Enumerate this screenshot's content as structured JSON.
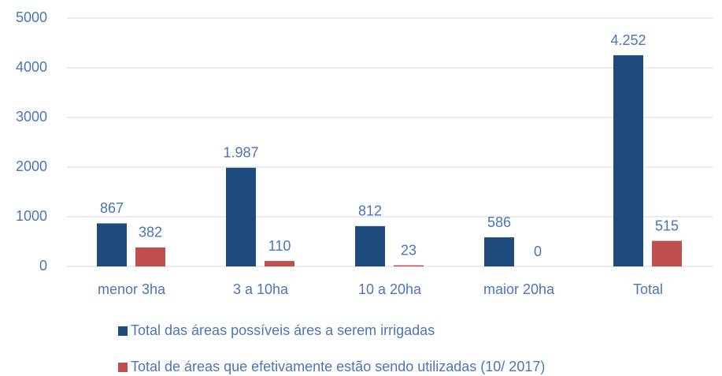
{
  "chart_data": {
    "type": "bar",
    "categories": [
      "menor 3ha",
      "3 a 10ha",
      "10 a 20ha",
      "maior 20ha",
      "Total"
    ],
    "series": [
      {
        "name": "Total das áreas possíveis áres a serem irrigadas",
        "color": "#1f4a7e",
        "values": [
          867,
          1987,
          812,
          586,
          4252
        ],
        "value_labels": [
          "867",
          "1.987",
          "812",
          "586",
          "4.252"
        ]
      },
      {
        "name": "Total de áreas que efetivamente estão sendo utilizadas (10/ 2017)",
        "color": "#c0504d",
        "values": [
          382,
          110,
          23,
          0,
          515
        ],
        "value_labels": [
          "382",
          "110",
          "23",
          "0",
          "515"
        ]
      }
    ],
    "ylim": [
      0,
      5000
    ],
    "yticks": [
      0,
      1000,
      2000,
      3000,
      4000,
      5000
    ],
    "grid": true
  }
}
